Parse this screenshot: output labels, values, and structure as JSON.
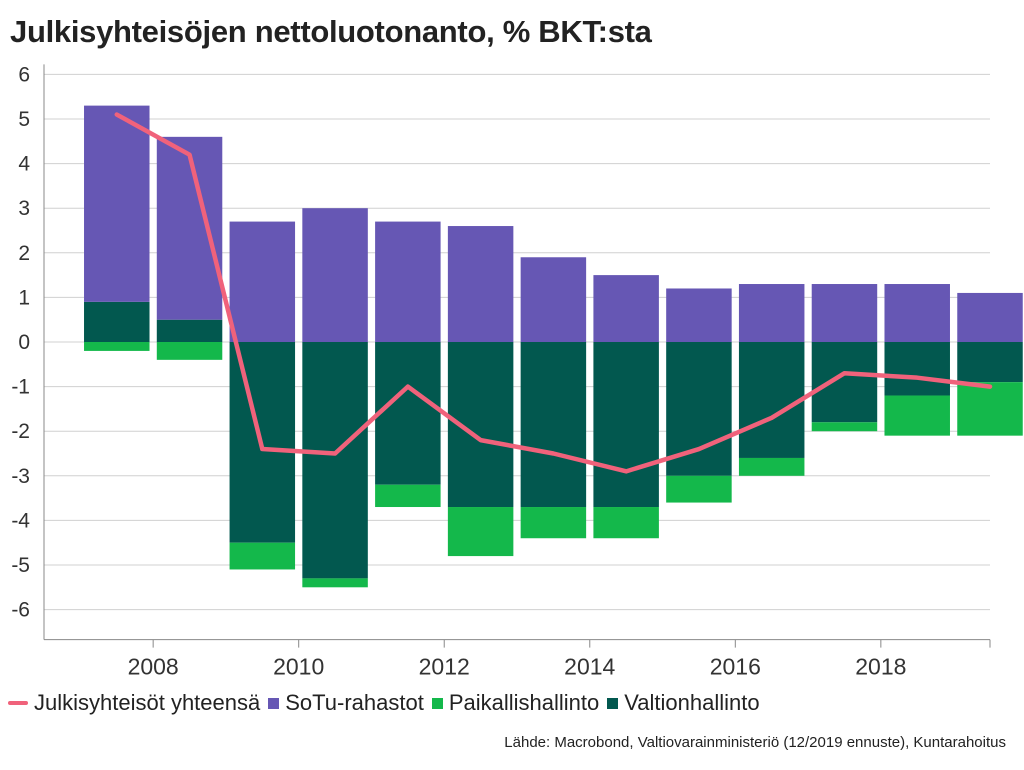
{
  "title": "Julkisyhteisöjen nettoluotonanto, % BKT:sta",
  "source": "Lähde: Macrobond, Valtiovarainministeriö (12/2019 ennuste), Kuntarahoitus",
  "legend": [
    {
      "label": "Julkisyhteisöt yhteensä",
      "kind": "line",
      "color": "#f0627b"
    },
    {
      "label": "SoTu-rahastot",
      "kind": "box",
      "color": "#6657b4"
    },
    {
      "label": "Paikallishallinto",
      "kind": "box",
      "color": "#14b84b"
    },
    {
      "label": "Valtionhallinto",
      "kind": "box",
      "color": "#02584f"
    }
  ],
  "chart_data": {
    "type": "bar",
    "stacked": true,
    "title": "Julkisyhteisöjen nettoluotonanto, % BKT:sta",
    "xlabel": "",
    "ylabel": "",
    "x": [
      2007,
      2008,
      2009,
      2010,
      2011,
      2012,
      2013,
      2014,
      2015,
      2016,
      2017,
      2018,
      2019
    ],
    "x_tick_labels": [
      2008,
      2010,
      2012,
      2014,
      2016,
      2018
    ],
    "ylim": [
      -6.3,
      6.3
    ],
    "y_ticks": [
      6,
      5,
      4,
      3,
      2,
      1,
      0,
      -1,
      -2,
      -3,
      -4,
      -5,
      -6
    ],
    "grid": true,
    "legend_position": "bottom",
    "series": [
      {
        "name": "SoTu-rahastot",
        "type": "bar",
        "color": "#6657b4",
        "values": [
          4.4,
          4.1,
          2.7,
          3.0,
          2.7,
          2.6,
          1.9,
          1.5,
          1.2,
          1.3,
          1.3,
          1.3,
          1.1
        ]
      },
      {
        "name": "Paikallishallinto",
        "type": "bar",
        "color": "#14b84b",
        "values": [
          -0.2,
          -0.4,
          -0.6,
          -0.2,
          -0.5,
          -1.1,
          -0.7,
          -0.7,
          -0.6,
          -0.4,
          -0.2,
          -0.9,
          -1.2
        ]
      },
      {
        "name": "Valtionhallinto",
        "type": "bar",
        "color": "#02584f",
        "values": [
          0.9,
          0.5,
          -4.5,
          -5.3,
          -3.2,
          -3.7,
          -3.7,
          -3.7,
          -3.0,
          -2.6,
          -1.8,
          -1.2,
          -0.9
        ]
      },
      {
        "name": "Julkisyhteisöt yhteensä",
        "type": "line",
        "color": "#f0627b",
        "values": [
          5.1,
          4.2,
          -2.4,
          -2.5,
          -1.0,
          -2.2,
          -2.5,
          -2.9,
          -2.4,
          -1.7,
          -0.7,
          -0.8,
          -1.0
        ]
      }
    ]
  }
}
